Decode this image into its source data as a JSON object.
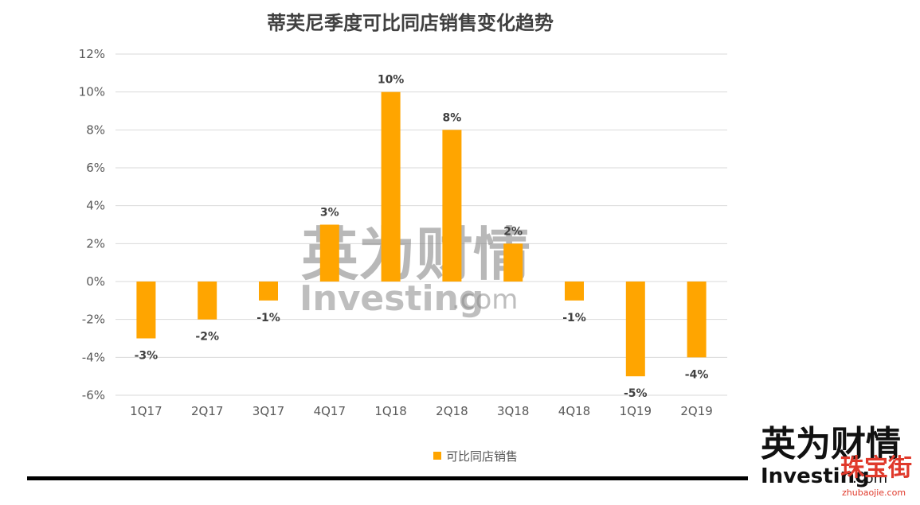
{
  "chart_data": {
    "type": "bar",
    "title": "蒂芙尼季度可比同店销售变化趋势",
    "categories": [
      "1Q17",
      "2Q17",
      "3Q17",
      "4Q17",
      "1Q18",
      "2Q18",
      "3Q18",
      "4Q18",
      "1Q19",
      "2Q19"
    ],
    "series": [
      {
        "name": "可比同店销售",
        "values": [
          -3,
          -2,
          -1,
          3,
          10,
          8,
          2,
          -1,
          -5,
          -4
        ],
        "color": "#FFA500"
      }
    ],
    "data_labels": [
      "-3%",
      "-2%",
      "-1%",
      "3%",
      "10%",
      "8%",
      "2%",
      "-1%",
      "-5%",
      "-4%"
    ],
    "y_ticks": [
      "12%",
      "10%",
      "8%",
      "6%",
      "4%",
      "2%",
      "0%",
      "-2%",
      "-4%",
      "-6%"
    ],
    "ylim": [
      -6,
      12
    ],
    "grid": true,
    "legend_position": "bottom"
  },
  "watermark": {
    "cn": "英为财情",
    "en": "Investing",
    "com": ".com"
  },
  "logo": {
    "cn": "英为财情",
    "en": "Investing",
    "com": ".com"
  },
  "seal": {
    "cn": "珠宝街",
    "url": "zhubaojie.com"
  }
}
